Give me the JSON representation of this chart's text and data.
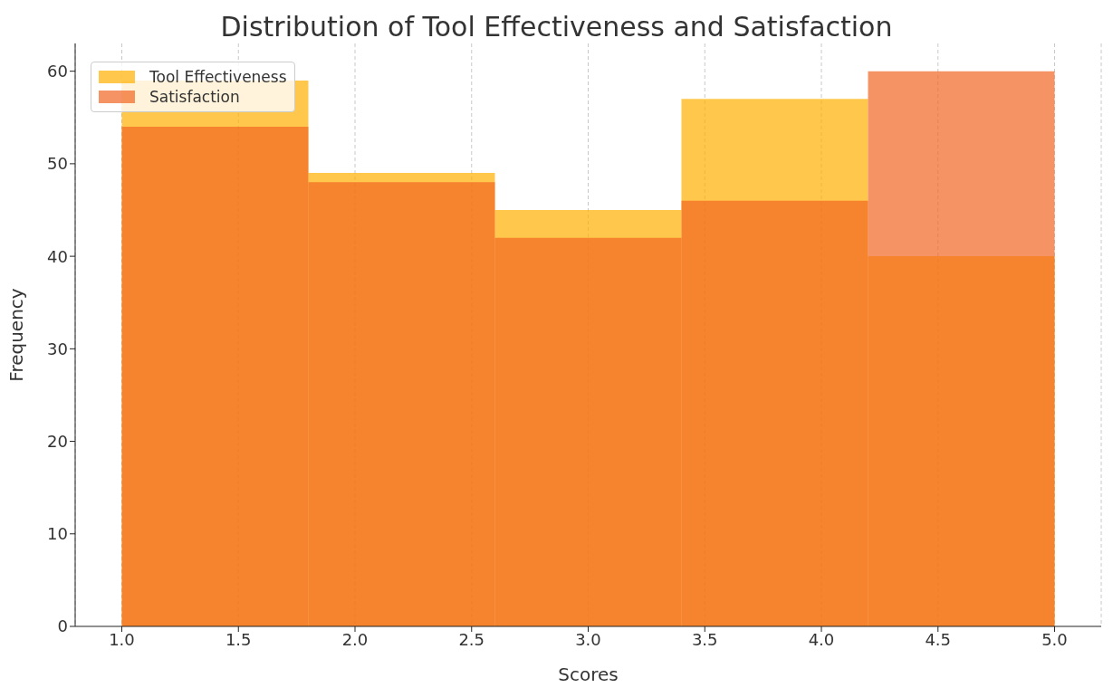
{
  "chart_data": {
    "type": "histogram",
    "title": "Distribution of Tool Effectiveness and Satisfaction",
    "xlabel": "Scores",
    "ylabel": "Frequency",
    "bins": [
      1.0,
      1.8,
      2.6,
      3.4,
      4.2,
      5.0
    ],
    "series": [
      {
        "name": "Tool Effectiveness",
        "color": "#ffb000",
        "values": [
          59,
          49,
          45,
          57,
          40
        ]
      },
      {
        "name": "Satisfaction",
        "color": "#f26522",
        "values": [
          54,
          48,
          42,
          46,
          60
        ]
      }
    ],
    "xlim": [
      0.8,
      5.2
    ],
    "xticks": [
      {
        "value": 1,
        "label": "1.0"
      },
      {
        "value": 1.5,
        "label": "1.5"
      },
      {
        "value": 2,
        "label": "2.0"
      },
      {
        "value": 2.5,
        "label": "2.5"
      },
      {
        "value": 3,
        "label": "3.0"
      },
      {
        "value": 3.5,
        "label": "3.5"
      },
      {
        "value": 4,
        "label": "4.0"
      },
      {
        "value": 4.5,
        "label": "4.5"
      },
      {
        "value": 5,
        "label": "5.0"
      }
    ],
    "ylim": [
      0,
      63
    ],
    "yticks": [
      0,
      10,
      20,
      30,
      40,
      50,
      60
    ],
    "grid": "x",
    "legend": "top left"
  }
}
